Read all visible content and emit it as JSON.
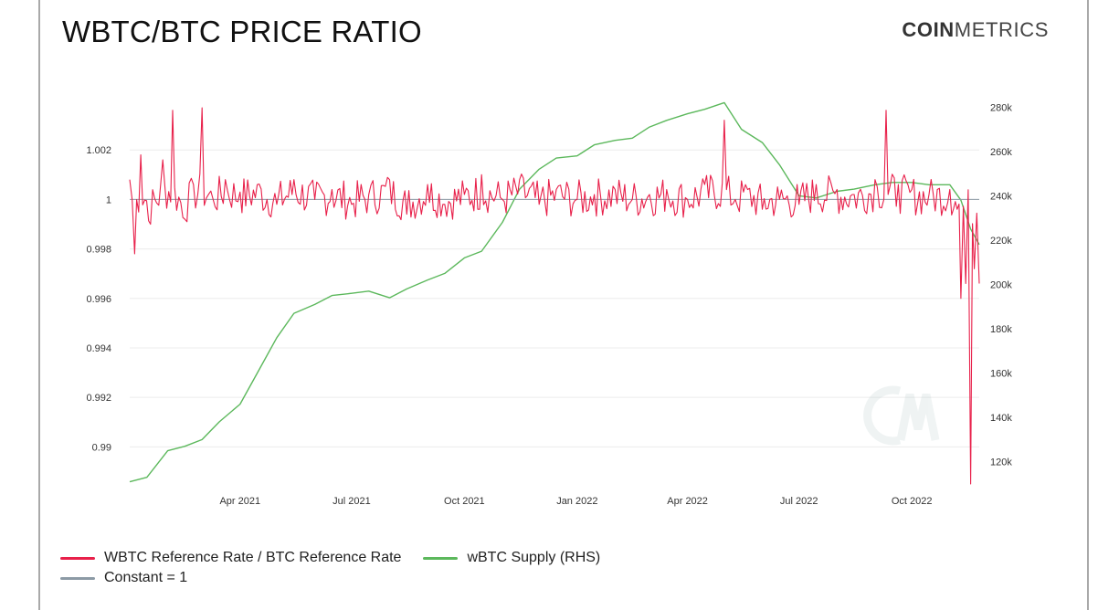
{
  "header": {
    "title": "WBTC/BTC PRICE RATIO",
    "logo_bold": "COIN",
    "logo_light": "METRICS"
  },
  "colors": {
    "ratio": "#e8204a",
    "supply": "#5cb85c",
    "constant": "#8c9aa5",
    "grid": "#ececec"
  },
  "chart_data": {
    "type": "line",
    "x_tick_labels": [
      "Apr 2021",
      "Jul 2021",
      "Oct 2021",
      "Jan 2022",
      "Apr 2022",
      "Jul 2022",
      "Oct 2022"
    ],
    "x_ticks": [
      "2021-04-01",
      "2021-07-01",
      "2021-10-01",
      "2022-01-01",
      "2022-04-01",
      "2022-07-01",
      "2022-10-01"
    ],
    "x_range": [
      "2021-01-01",
      "2022-11-25"
    ],
    "y_left_ticks": [
      "0.99",
      "0.992",
      "0.994",
      "0.996",
      "0.998",
      "1",
      "1.002"
    ],
    "y_left_range": [
      0.9885,
      1.004
    ],
    "y_right_ticks": [
      "120k",
      "140k",
      "160k",
      "180k",
      "200k",
      "220k",
      "240k",
      "260k",
      "280k"
    ],
    "y_right_range": [
      110000,
      283000
    ],
    "series": [
      {
        "name": "WBTC Reference Rate / BTC Reference Rate",
        "axis": "left",
        "x": [
          "2021-01-01",
          "2021-01-05",
          "2021-01-10",
          "2021-01-18",
          "2021-01-28",
          "2021-02-05",
          "2021-02-15",
          "2021-02-22",
          "2021-03-01",
          "2021-03-10",
          "2021-03-20",
          "2021-04-01",
          "2021-04-15",
          "2021-05-01",
          "2021-05-15",
          "2021-06-01",
          "2021-06-15",
          "2021-07-01",
          "2021-07-15",
          "2021-08-01",
          "2021-08-15",
          "2021-09-01",
          "2021-09-15",
          "2021-10-01",
          "2021-10-15",
          "2021-11-01",
          "2021-11-15",
          "2021-12-01",
          "2021-12-15",
          "2022-01-01",
          "2022-01-15",
          "2022-02-01",
          "2022-02-15",
          "2022-03-01",
          "2022-03-15",
          "2022-04-01",
          "2022-04-15",
          "2022-05-01",
          "2022-05-10",
          "2022-05-20",
          "2022-06-01",
          "2022-06-15",
          "2022-07-01",
          "2022-07-15",
          "2022-08-01",
          "2022-08-15",
          "2022-09-01",
          "2022-09-10",
          "2022-09-20",
          "2022-10-01",
          "2022-10-15",
          "2022-11-01",
          "2022-11-07",
          "2022-11-10",
          "2022-11-14",
          "2022-11-18",
          "2022-11-21",
          "2022-11-25"
        ],
        "y": [
          1.0008,
          0.9978,
          1.0018,
          0.999,
          1.0016,
          1.0036,
          0.9992,
          1.0006,
          1.0037,
          1.0,
          1.0008,
          1.0003,
          1.0006,
          0.9998,
          1.0008,
          1.0,
          1.0004,
          0.9998,
          1.0002,
          1.0008,
          0.9994,
          1.0006,
          0.9998,
          1.0002,
          1.001,
          1.0,
          1.0008,
          0.9998,
          1.0004,
          1.0,
          1.0002,
          1.0004,
          1.0,
          1.0002,
          1.0004,
          1.0,
          1.0006,
          1.0032,
          1.0,
          1.0004,
          0.9996,
          1.0,
          0.9998,
          1.0006,
          1.0004,
          1.0002,
          1.0008,
          1.0036,
          1.0006,
          1.0004,
          1.0002,
          1.0004,
          0.9996,
          0.996,
          0.9966,
          0.9885,
          0.9972,
          0.9966
        ]
      },
      {
        "name": "wBTC Supply (RHS)",
        "axis": "right",
        "x": [
          "2021-01-01",
          "2021-01-15",
          "2021-02-01",
          "2021-02-15",
          "2021-03-01",
          "2021-03-15",
          "2021-04-01",
          "2021-04-15",
          "2021-05-01",
          "2021-05-15",
          "2021-06-01",
          "2021-06-15",
          "2021-07-01",
          "2021-07-15",
          "2021-08-01",
          "2021-08-15",
          "2021-09-01",
          "2021-09-15",
          "2021-10-01",
          "2021-10-15",
          "2021-11-01",
          "2021-11-15",
          "2021-12-01",
          "2021-12-15",
          "2022-01-01",
          "2022-01-15",
          "2022-02-01",
          "2022-02-15",
          "2022-03-01",
          "2022-03-15",
          "2022-04-01",
          "2022-04-15",
          "2022-05-01",
          "2022-05-15",
          "2022-06-01",
          "2022-06-15",
          "2022-07-01",
          "2022-07-15",
          "2022-08-01",
          "2022-08-15",
          "2022-09-01",
          "2022-09-15",
          "2022-10-01",
          "2022-10-15",
          "2022-11-01",
          "2022-11-10",
          "2022-11-18",
          "2022-11-25"
        ],
        "y": [
          111000,
          113000,
          125000,
          127000,
          130000,
          138000,
          146000,
          160000,
          176000,
          187000,
          191000,
          195000,
          196000,
          197000,
          194000,
          198000,
          202000,
          205000,
          212000,
          215000,
          228000,
          243000,
          252000,
          257000,
          258000,
          263000,
          265000,
          266000,
          271000,
          274000,
          277000,
          279000,
          282000,
          270000,
          264000,
          254000,
          240000,
          239000,
          242000,
          243000,
          245000,
          246000,
          246000,
          245000,
          245000,
          238000,
          225000,
          218000
        ]
      },
      {
        "name": "Constant = 1",
        "axis": "left",
        "x": [
          "2021-01-01",
          "2022-11-25"
        ],
        "y": [
          1,
          1
        ]
      }
    ]
  },
  "legend": [
    {
      "label": "WBTC Reference Rate / BTC Reference Rate",
      "color": "#e8204a"
    },
    {
      "label": "wBTC Supply (RHS)",
      "color": "#5cb85c"
    },
    {
      "label": "Constant = 1",
      "color": "#8c9aa5"
    }
  ]
}
